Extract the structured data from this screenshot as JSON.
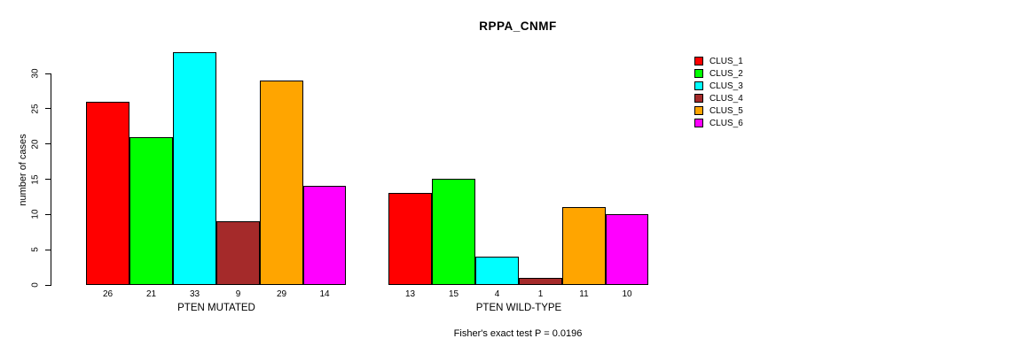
{
  "chart_data": {
    "type": "bar",
    "title": "RPPA_CNMF",
    "ylabel": "number of cases",
    "ylim": [
      0,
      33
    ],
    "yticks": [
      0,
      5,
      10,
      15,
      20,
      25,
      30
    ],
    "grid": false,
    "legend_position": "right",
    "categories": [
      "PTEN MUTATED",
      "PTEN WILD-TYPE"
    ],
    "groups": [
      {
        "label": "PTEN MUTATED",
        "values": [
          26,
          21,
          33,
          9,
          29,
          14
        ]
      },
      {
        "label": "PTEN WILD-TYPE",
        "values": [
          13,
          15,
          4,
          1,
          11,
          10
        ]
      }
    ],
    "series": [
      {
        "name": "CLUS_1",
        "color": "#FF0000"
      },
      {
        "name": "CLUS_2",
        "color": "#00FF00"
      },
      {
        "name": "CLUS_3",
        "color": "#00FFFF"
      },
      {
        "name": "CLUS_4",
        "color": "#A52A2A"
      },
      {
        "name": "CLUS_5",
        "color": "#FFA500"
      },
      {
        "name": "CLUS_6",
        "color": "#FF00FF"
      }
    ],
    "annotation": "Fisher's exact test P = 0.0196"
  }
}
